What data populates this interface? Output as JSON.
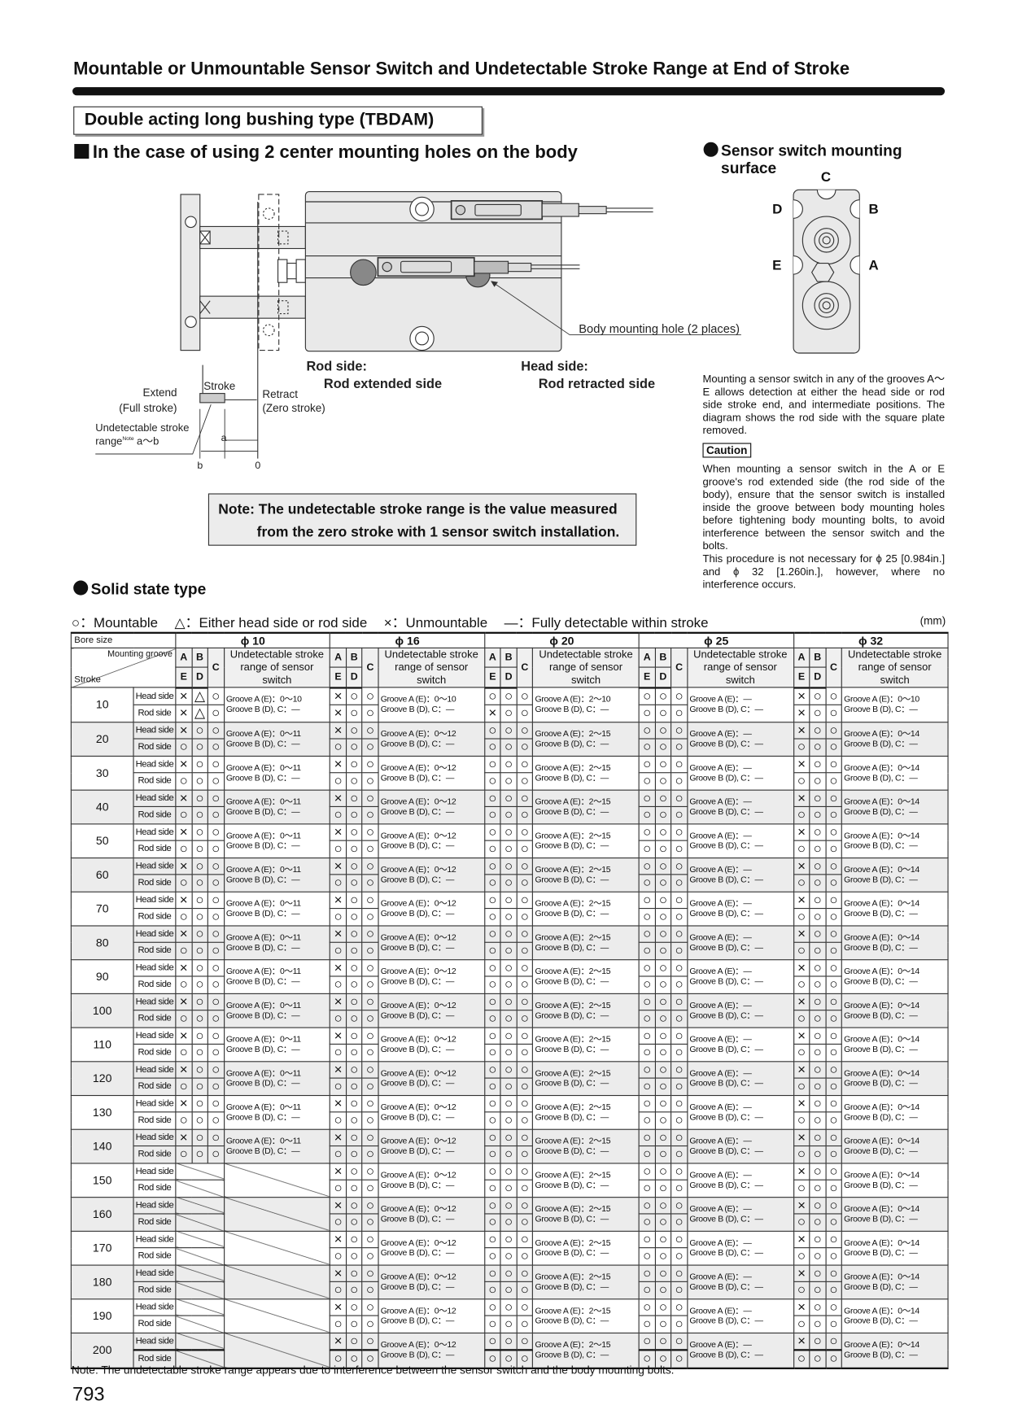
{
  "header": {
    "title": "Mountable or Unmountable Sensor Switch and Undetectable Stroke Range at End of Stroke",
    "section_box": "Double acting long bushing type (TBDAM)",
    "subheading": "In the case of using 2 center mounting holes on the body"
  },
  "diagram": {
    "body_mounting_hole": "Body mounting hole (2 places)",
    "rod_side": "Rod side:",
    "rod_extended_side": "Rod extended side",
    "head_side": "Head side:",
    "rod_retracted_side": "Rod retracted side",
    "stroke": "Stroke",
    "extend": "Extend",
    "full_stroke": "(Full stroke)",
    "retract": "Retract",
    "zero_stroke": "(Zero stroke)",
    "undetectable_line1": "Undetectable stroke",
    "undetectable_range": "range",
    "note_sup": "Note",
    "a_to_b": "a～b",
    "a": "a",
    "b": "b",
    "zero": "0"
  },
  "note_box": {
    "line1": "Note: The undetectable stroke range is the value measured",
    "line2": "from the zero stroke with 1 sensor switch installation."
  },
  "sensor_surface": {
    "heading_line1": "Sensor switch mounting",
    "heading_line2": "surface",
    "labels": {
      "A": "A",
      "B": "B",
      "C": "C",
      "D": "D",
      "E": "E"
    },
    "description": "Mounting a sensor switch in any of the grooves A～E allows detection at either the head side or rod side stroke end, and intermediate positions. The diagram shows the rod side with the square plate removed.",
    "caution_label": "Caution",
    "caution_text": "When mounting a sensor switch in the A or E groove's rod extended side (the rod side of the body), ensure that the sensor switch is installed inside the groove between body mounting holes before tightening body mounting bolts, to avoid interference between the sensor switch and the bolts.",
    "caution_text2": "This procedure is not necessary for ϕ 25 [0.984in.] and ϕ 32 [1.260in.], however, where no interference occurs."
  },
  "solid_state": {
    "heading": "Solid state type",
    "legend": [
      {
        "symbol": "○",
        "label": "：Mountable"
      },
      {
        "symbol": "△",
        "label": "：Either head side or rod side"
      },
      {
        "symbol": "×",
        "label": "：Unmountable"
      },
      {
        "symbol": "—",
        "label": "：Fully detectable within stroke"
      }
    ],
    "unit": "(mm)"
  },
  "table": {
    "bore_label": "Bore size",
    "groove_label": "Mounting groove",
    "stroke_label": "Stroke",
    "range_header": "Undetectable stroke range of sensor switch",
    "col_a": "A",
    "col_e": "E",
    "col_b": "B",
    "col_d": "D",
    "col_c": "C",
    "head_label": "Head side",
    "rod_label": "Rod side",
    "groove_a_prefix": "Groove A (E)：",
    "groove_bdc_prefix": "Groove B (D), C：",
    "bores": [
      "ϕ 10",
      "ϕ 16",
      "ϕ 20",
      "ϕ 25",
      "ϕ 32"
    ],
    "rows": [
      {
        "stroke": "10",
        "cells": [
          {
            "head": "×△○",
            "rod": "×△○",
            "a": "0～10",
            "bdc": "—"
          },
          {
            "head": "×○○",
            "rod": "×○○",
            "a": "0～10",
            "bdc": "—"
          },
          {
            "head": "○○○",
            "rod": "×○○",
            "a": "2～10",
            "bdc": "—"
          },
          {
            "head": "○○○",
            "rod": "○○○",
            "a": "—",
            "bdc": "—"
          },
          {
            "head": "×○○",
            "rod": "×○○",
            "a": "0～10",
            "bdc": "—"
          }
        ]
      },
      {
        "stroke": "20",
        "cells": [
          {
            "head": "×○○",
            "rod": "○○○",
            "a": "0～11",
            "bdc": "—"
          },
          {
            "head": "×○○",
            "rod": "○○○",
            "a": "0～12",
            "bdc": "—"
          },
          {
            "head": "○○○",
            "rod": "○○○",
            "a": "2～15",
            "bdc": "—"
          },
          {
            "head": "○○○",
            "rod": "○○○",
            "a": "—",
            "bdc": "—"
          },
          {
            "head": "×○○",
            "rod": "○○○",
            "a": "0～14",
            "bdc": "—"
          }
        ]
      },
      {
        "stroke": "30",
        "cells": [
          {
            "head": "×○○",
            "rod": "○○○",
            "a": "0～11",
            "bdc": "—"
          },
          {
            "head": "×○○",
            "rod": "○○○",
            "a": "0～12",
            "bdc": "—"
          },
          {
            "head": "○○○",
            "rod": "○○○",
            "a": "2～15",
            "bdc": "—"
          },
          {
            "head": "○○○",
            "rod": "○○○",
            "a": "—",
            "bdc": "—"
          },
          {
            "head": "×○○",
            "rod": "○○○",
            "a": "0～14",
            "bdc": "—"
          }
        ]
      },
      {
        "stroke": "40",
        "cells": [
          {
            "head": "×○○",
            "rod": "○○○",
            "a": "0～11",
            "bdc": "—"
          },
          {
            "head": "×○○",
            "rod": "○○○",
            "a": "0～12",
            "bdc": "—"
          },
          {
            "head": "○○○",
            "rod": "○○○",
            "a": "2～15",
            "bdc": "—"
          },
          {
            "head": "○○○",
            "rod": "○○○",
            "a": "—",
            "bdc": "—"
          },
          {
            "head": "×○○",
            "rod": "○○○",
            "a": "0～14",
            "bdc": "—"
          }
        ]
      },
      {
        "stroke": "50",
        "cells": [
          {
            "head": "×○○",
            "rod": "○○○",
            "a": "0～11",
            "bdc": "—"
          },
          {
            "head": "×○○",
            "rod": "○○○",
            "a": "0～12",
            "bdc": "—"
          },
          {
            "head": "○○○",
            "rod": "○○○",
            "a": "2～15",
            "bdc": "—"
          },
          {
            "head": "○○○",
            "rod": "○○○",
            "a": "—",
            "bdc": "—"
          },
          {
            "head": "×○○",
            "rod": "○○○",
            "a": "0～14",
            "bdc": "—"
          }
        ]
      },
      {
        "stroke": "60",
        "cells": [
          {
            "head": "×○○",
            "rod": "○○○",
            "a": "0～11",
            "bdc": "—"
          },
          {
            "head": "×○○",
            "rod": "○○○",
            "a": "0～12",
            "bdc": "—"
          },
          {
            "head": "○○○",
            "rod": "○○○",
            "a": "2～15",
            "bdc": "—"
          },
          {
            "head": "○○○",
            "rod": "○○○",
            "a": "—",
            "bdc": "—"
          },
          {
            "head": "×○○",
            "rod": "○○○",
            "a": "0～14",
            "bdc": "—"
          }
        ]
      },
      {
        "stroke": "70",
        "cells": [
          {
            "head": "×○○",
            "rod": "○○○",
            "a": "0～11",
            "bdc": "—"
          },
          {
            "head": "×○○",
            "rod": "○○○",
            "a": "0～12",
            "bdc": "—"
          },
          {
            "head": "○○○",
            "rod": "○○○",
            "a": "2～15",
            "bdc": "—"
          },
          {
            "head": "○○○",
            "rod": "○○○",
            "a": "—",
            "bdc": "—"
          },
          {
            "head": "×○○",
            "rod": "○○○",
            "a": "0～14",
            "bdc": "—"
          }
        ]
      },
      {
        "stroke": "80",
        "cells": [
          {
            "head": "×○○",
            "rod": "○○○",
            "a": "0～11",
            "bdc": "—"
          },
          {
            "head": "×○○",
            "rod": "○○○",
            "a": "0～12",
            "bdc": "—"
          },
          {
            "head": "○○○",
            "rod": "○○○",
            "a": "2～15",
            "bdc": "—"
          },
          {
            "head": "○○○",
            "rod": "○○○",
            "a": "—",
            "bdc": "—"
          },
          {
            "head": "×○○",
            "rod": "○○○",
            "a": "0～14",
            "bdc": "—"
          }
        ]
      },
      {
        "stroke": "90",
        "cells": [
          {
            "head": "×○○",
            "rod": "○○○",
            "a": "0～11",
            "bdc": "—"
          },
          {
            "head": "×○○",
            "rod": "○○○",
            "a": "0～12",
            "bdc": "—"
          },
          {
            "head": "○○○",
            "rod": "○○○",
            "a": "2～15",
            "bdc": "—"
          },
          {
            "head": "○○○",
            "rod": "○○○",
            "a": "—",
            "bdc": "—"
          },
          {
            "head": "×○○",
            "rod": "○○○",
            "a": "0～14",
            "bdc": "—"
          }
        ]
      },
      {
        "stroke": "100",
        "cells": [
          {
            "head": "×○○",
            "rod": "○○○",
            "a": "0～11",
            "bdc": "—"
          },
          {
            "head": "×○○",
            "rod": "○○○",
            "a": "0～12",
            "bdc": "—"
          },
          {
            "head": "○○○",
            "rod": "○○○",
            "a": "2～15",
            "bdc": "—"
          },
          {
            "head": "○○○",
            "rod": "○○○",
            "a": "—",
            "bdc": "—"
          },
          {
            "head": "×○○",
            "rod": "○○○",
            "a": "0～14",
            "bdc": "—"
          }
        ]
      },
      {
        "stroke": "110",
        "cells": [
          {
            "head": "×○○",
            "rod": "○○○",
            "a": "0～11",
            "bdc": "—"
          },
          {
            "head": "×○○",
            "rod": "○○○",
            "a": "0～12",
            "bdc": "—"
          },
          {
            "head": "○○○",
            "rod": "○○○",
            "a": "2～15",
            "bdc": "—"
          },
          {
            "head": "○○○",
            "rod": "○○○",
            "a": "—",
            "bdc": "—"
          },
          {
            "head": "×○○",
            "rod": "○○○",
            "a": "0～14",
            "bdc": "—"
          }
        ]
      },
      {
        "stroke": "120",
        "cells": [
          {
            "head": "×○○",
            "rod": "○○○",
            "a": "0～11",
            "bdc": "—"
          },
          {
            "head": "×○○",
            "rod": "○○○",
            "a": "0～12",
            "bdc": "—"
          },
          {
            "head": "○○○",
            "rod": "○○○",
            "a": "2～15",
            "bdc": "—"
          },
          {
            "head": "○○○",
            "rod": "○○○",
            "a": "—",
            "bdc": "—"
          },
          {
            "head": "×○○",
            "rod": "○○○",
            "a": "0～14",
            "bdc": "—"
          }
        ]
      },
      {
        "stroke": "130",
        "cells": [
          {
            "head": "×○○",
            "rod": "○○○",
            "a": "0～11",
            "bdc": "—"
          },
          {
            "head": "×○○",
            "rod": "○○○",
            "a": "0～12",
            "bdc": "—"
          },
          {
            "head": "○○○",
            "rod": "○○○",
            "a": "2～15",
            "bdc": "—"
          },
          {
            "head": "○○○",
            "rod": "○○○",
            "a": "—",
            "bdc": "—"
          },
          {
            "head": "×○○",
            "rod": "○○○",
            "a": "0～14",
            "bdc": "—"
          }
        ]
      },
      {
        "stroke": "140",
        "cells": [
          {
            "head": "×○○",
            "rod": "○○○",
            "a": "0～11",
            "bdc": "—"
          },
          {
            "head": "×○○",
            "rod": "○○○",
            "a": "0～12",
            "bdc": "—"
          },
          {
            "head": "○○○",
            "rod": "○○○",
            "a": "2～15",
            "bdc": "—"
          },
          {
            "head": "○○○",
            "rod": "○○○",
            "a": "—",
            "bdc": "—"
          },
          {
            "head": "×○○",
            "rod": "○○○",
            "a": "0～14",
            "bdc": "—"
          }
        ]
      },
      {
        "stroke": "150",
        "cells": [
          null,
          {
            "head": "×○○",
            "rod": "○○○",
            "a": "0～12",
            "bdc": "—"
          },
          {
            "head": "○○○",
            "rod": "○○○",
            "a": "2～15",
            "bdc": "—"
          },
          {
            "head": "○○○",
            "rod": "○○○",
            "a": "—",
            "bdc": "—"
          },
          {
            "head": "×○○",
            "rod": "○○○",
            "a": "0～14",
            "bdc": "—"
          }
        ]
      },
      {
        "stroke": "160",
        "cells": [
          null,
          {
            "head": "×○○",
            "rod": "○○○",
            "a": "0～12",
            "bdc": "—"
          },
          {
            "head": "○○○",
            "rod": "○○○",
            "a": "2～15",
            "bdc": "—"
          },
          {
            "head": "○○○",
            "rod": "○○○",
            "a": "—",
            "bdc": "—"
          },
          {
            "head": "×○○",
            "rod": "○○○",
            "a": "0～14",
            "bdc": "—"
          }
        ]
      },
      {
        "stroke": "170",
        "cells": [
          null,
          {
            "head": "×○○",
            "rod": "○○○",
            "a": "0～12",
            "bdc": "—"
          },
          {
            "head": "○○○",
            "rod": "○○○",
            "a": "2～15",
            "bdc": "—"
          },
          {
            "head": "○○○",
            "rod": "○○○",
            "a": "—",
            "bdc": "—"
          },
          {
            "head": "×○○",
            "rod": "○○○",
            "a": "0～14",
            "bdc": "—"
          }
        ]
      },
      {
        "stroke": "180",
        "cells": [
          null,
          {
            "head": "×○○",
            "rod": "○○○",
            "a": "0～12",
            "bdc": "—"
          },
          {
            "head": "○○○",
            "rod": "○○○",
            "a": "2～15",
            "bdc": "—"
          },
          {
            "head": "○○○",
            "rod": "○○○",
            "a": "—",
            "bdc": "—"
          },
          {
            "head": "×○○",
            "rod": "○○○",
            "a": "0～14",
            "bdc": "—"
          }
        ]
      },
      {
        "stroke": "190",
        "cells": [
          null,
          {
            "head": "×○○",
            "rod": "○○○",
            "a": "0～12",
            "bdc": "—"
          },
          {
            "head": "○○○",
            "rod": "○○○",
            "a": "2～15",
            "bdc": "—"
          },
          {
            "head": "○○○",
            "rod": "○○○",
            "a": "—",
            "bdc": "—"
          },
          {
            "head": "×○○",
            "rod": "○○○",
            "a": "0～14",
            "bdc": "—"
          }
        ]
      },
      {
        "stroke": "200",
        "cells": [
          null,
          {
            "head": "×○○",
            "rod": "○○○",
            "a": "0～12",
            "bdc": "—"
          },
          {
            "head": "○○○",
            "rod": "○○○",
            "a": "2～15",
            "bdc": "—"
          },
          {
            "head": "○○○",
            "rod": "○○○",
            "a": "—",
            "bdc": "—"
          },
          {
            "head": "×○○",
            "rod": "○○○",
            "a": "0～14",
            "bdc": "—"
          }
        ]
      }
    ]
  },
  "footnote": "Note: The undetectable stroke range appears due to interference between the sensor switch and the body mounting bolts.",
  "page_number": "793"
}
